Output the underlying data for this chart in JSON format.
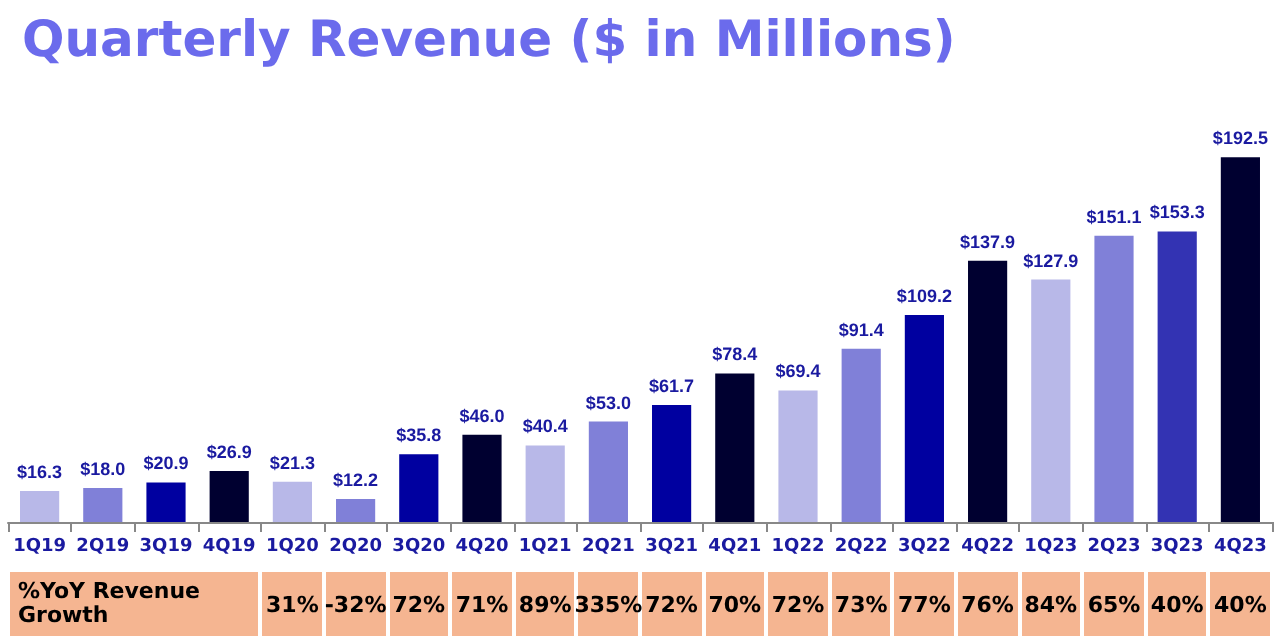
{
  "chart_data": {
    "type": "bar",
    "title": "Quarterly Revenue ($ in Millions)",
    "categories": [
      "1Q19",
      "2Q19",
      "3Q19",
      "4Q19",
      "1Q20",
      "2Q20",
      "3Q20",
      "4Q20",
      "1Q21",
      "2Q21",
      "3Q21",
      "4Q21",
      "1Q22",
      "2Q22",
      "3Q22",
      "4Q22",
      "1Q23",
      "2Q23",
      "3Q23",
      "4Q23"
    ],
    "values": [
      16.3,
      18.0,
      20.9,
      26.9,
      21.3,
      12.2,
      35.8,
      46.0,
      40.4,
      53.0,
      61.7,
      78.4,
      69.4,
      91.4,
      109.2,
      137.9,
      127.9,
      151.1,
      153.3,
      192.5
    ],
    "colors": [
      "#b8b8e8",
      "#8080d8",
      "#0000a0",
      "#000030",
      "#b8b8e8",
      "#8080d8",
      "#0000a0",
      "#000030",
      "#b8b8e8",
      "#8080d8",
      "#0000a0",
      "#000030",
      "#b8b8e8",
      "#8080d8",
      "#0000a0",
      "#000030",
      "#b8b8e8",
      "#8080d8",
      "#3333b3",
      "#000030"
    ],
    "value_labels": [
      "$16.3",
      "$18.0",
      "$20.9",
      "$26.9",
      "$21.3",
      "$12.2",
      "$35.8",
      "$46.0",
      "$40.4",
      "$53.0",
      "$61.7",
      "$78.4",
      "$69.4",
      "$91.4",
      "$109.2",
      "$137.9",
      "$127.9",
      "$151.1",
      "$153.3",
      "$192.5"
    ],
    "annotations": [
      "%YoY Revenue Growth",
      "31%",
      "-32%",
      "72%",
      "71%",
      "89%",
      "335%",
      "72%",
      "70%",
      "72%",
      "73%",
      "77%",
      "76%",
      "84%",
      "65%",
      "40%",
      "40%"
    ]
  }
}
